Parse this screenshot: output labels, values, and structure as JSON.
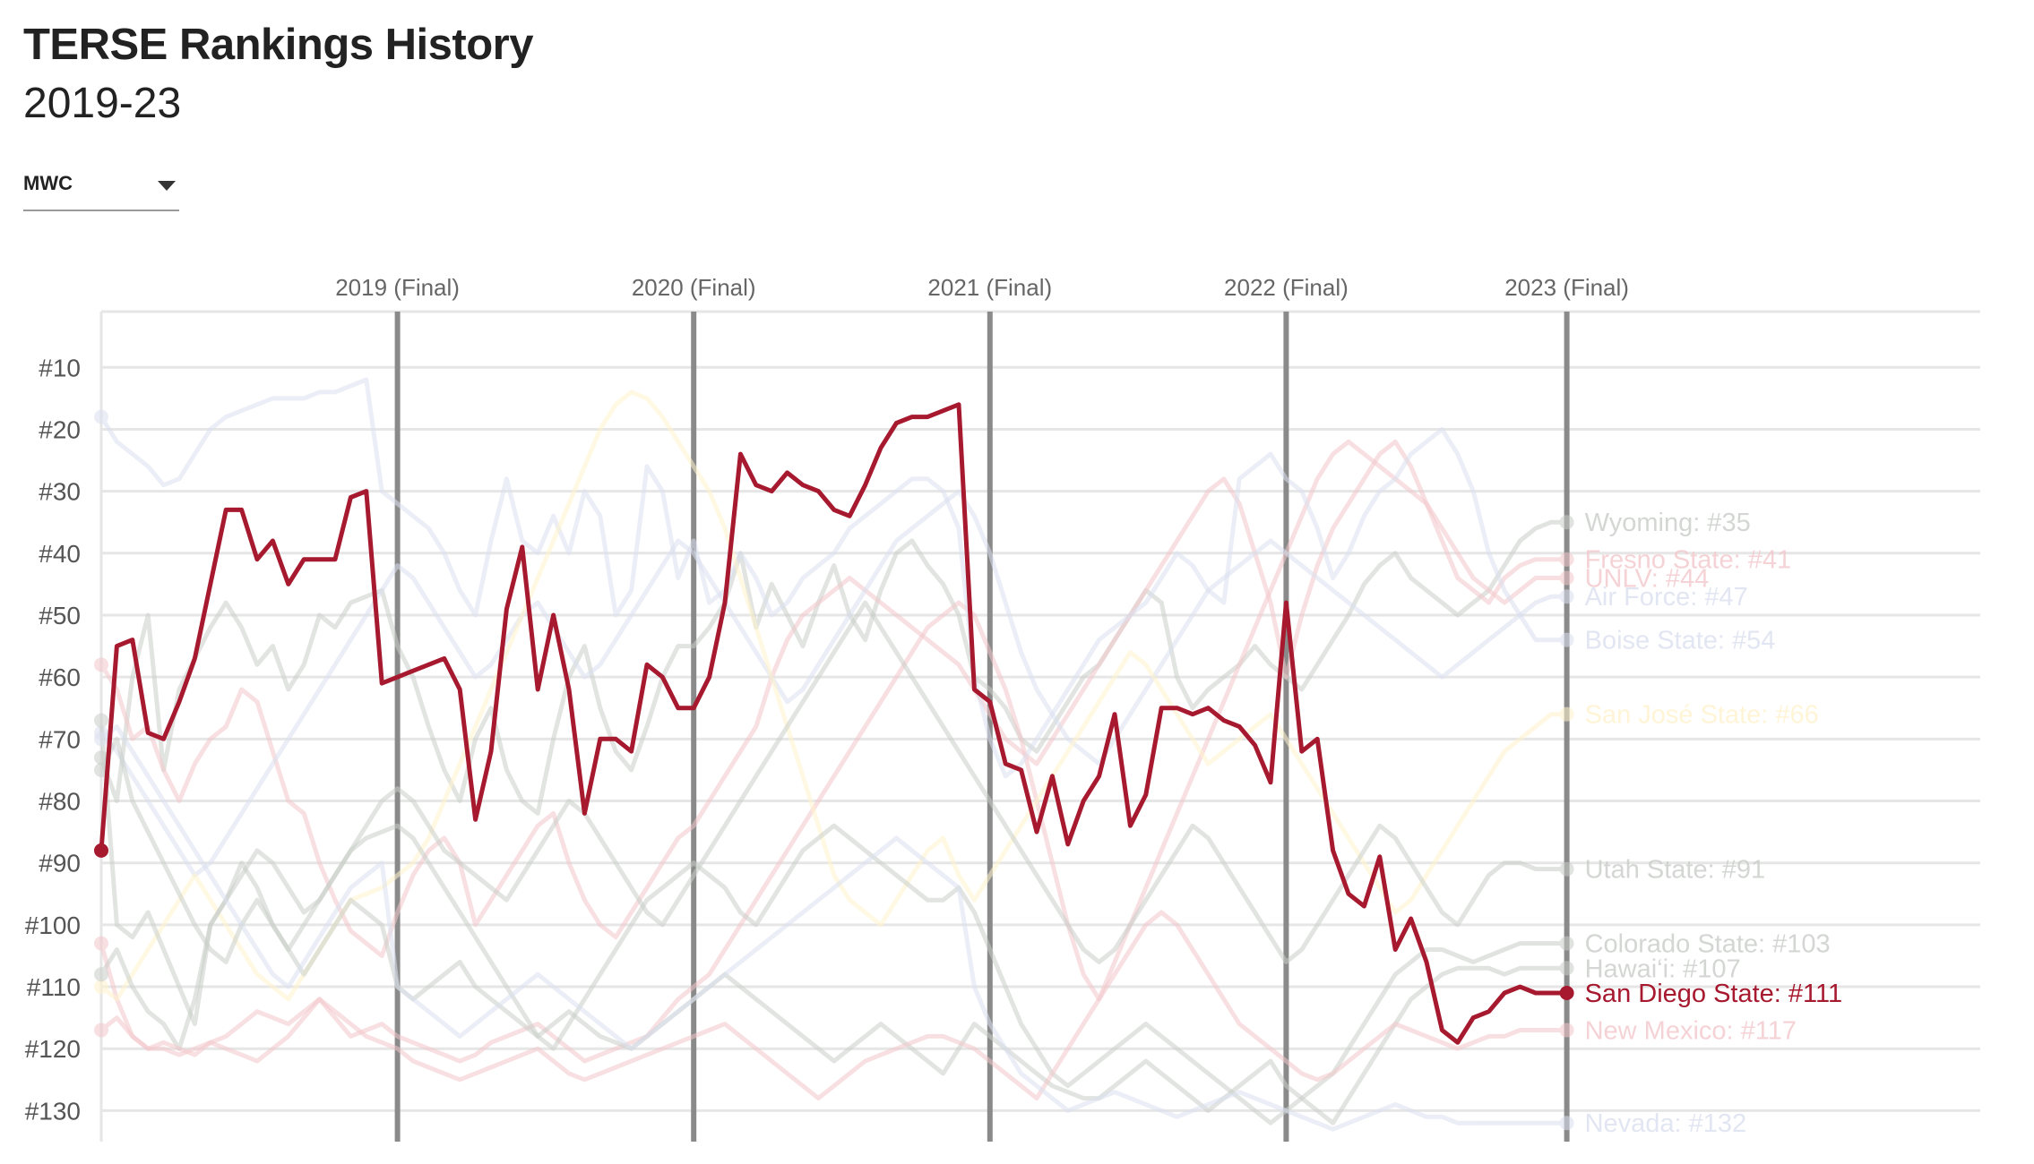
{
  "header": {
    "title": "TERSE Rankings History",
    "subtitle": "2019-23"
  },
  "conference_select": {
    "selected": "MWC"
  },
  "chart_data": {
    "type": "line",
    "y_inverted": true,
    "ylim": [
      1,
      135
    ],
    "y_ticks": [
      "#10",
      "#20",
      "#30",
      "#40",
      "#50",
      "#60",
      "#70",
      "#80",
      "#90",
      "#100",
      "#110",
      "#120",
      "#130"
    ],
    "y_tick_values": [
      10,
      20,
      30,
      40,
      50,
      60,
      70,
      80,
      90,
      100,
      110,
      120,
      130
    ],
    "season_markers": [
      {
        "label": "2019 (Final)",
        "index": 19
      },
      {
        "label": "2020 (Final)",
        "index": 38
      },
      {
        "label": "2021 (Final)",
        "index": 57
      },
      {
        "label": "2022 (Final)",
        "index": 76
      },
      {
        "label": "2023 (Final)",
        "index": 94
      }
    ],
    "highlight_color": "#a6192e",
    "series": [
      {
        "name": "San Diego State",
        "label": "San Diego State: #111",
        "highlight": true,
        "color": "#a6192e",
        "values": [
          88,
          55,
          54,
          69,
          70,
          64,
          57,
          45,
          33,
          33,
          41,
          38,
          45,
          41,
          41,
          41,
          31,
          30,
          61,
          60,
          59,
          58,
          57,
          62,
          83,
          72,
          49,
          39,
          62,
          50,
          62,
          82,
          70,
          70,
          72,
          58,
          60,
          65,
          65,
          60,
          48,
          24,
          29,
          30,
          27,
          29,
          30,
          33,
          34,
          29,
          23,
          19,
          18,
          18,
          17,
          16,
          62,
          64,
          74,
          75,
          85,
          76,
          87,
          80,
          76,
          66,
          84,
          79,
          65,
          65,
          66,
          65,
          67,
          68,
          71,
          77,
          48,
          72,
          70,
          88,
          95,
          97,
          89,
          104,
          99,
          106,
          117,
          119,
          115,
          114,
          111,
          110,
          111,
          111,
          111
        ]
      },
      {
        "name": "Wyoming",
        "label": "Wyoming: #35",
        "color": "#c9cdc9",
        "values": [
          73,
          80,
          60,
          50,
          75,
          62,
          57,
          52,
          48,
          52,
          58,
          55,
          62,
          58,
          50,
          52,
          48,
          47,
          46,
          55,
          60,
          68,
          75,
          80,
          70,
          65,
          75,
          80,
          82,
          70,
          60,
          55,
          65,
          72,
          75,
          68,
          60,
          55,
          55,
          52,
          48,
          40,
          52,
          45,
          50,
          55,
          48,
          42,
          50,
          54,
          46,
          40,
          38,
          42,
          45,
          50,
          60,
          62,
          65,
          70,
          72,
          68,
          64,
          60,
          58,
          54,
          50,
          46,
          48,
          60,
          65,
          62,
          60,
          58,
          55,
          58,
          60,
          62,
          58,
          54,
          50,
          45,
          42,
          40,
          44,
          46,
          48,
          50,
          48,
          46,
          42,
          38,
          36,
          35,
          35
        ]
      },
      {
        "name": "Fresno State",
        "label": "Fresno State: #41",
        "color": "#f3c7cb",
        "values": [
          58,
          62,
          70,
          68,
          75,
          80,
          74,
          70,
          68,
          62,
          64,
          72,
          80,
          82,
          90,
          96,
          101,
          103,
          105,
          98,
          92,
          88,
          86,
          90,
          100,
          96,
          92,
          88,
          84,
          82,
          90,
          96,
          100,
          102,
          98,
          94,
          90,
          86,
          84,
          80,
          76,
          72,
          68,
          60,
          54,
          50,
          48,
          46,
          44,
          46,
          48,
          50,
          52,
          54,
          56,
          58,
          62,
          66,
          70,
          72,
          74,
          70,
          66,
          62,
          58,
          54,
          50,
          46,
          42,
          38,
          34,
          30,
          28,
          32,
          40,
          48,
          60,
          50,
          42,
          36,
          32,
          28,
          24,
          22,
          26,
          32,
          38,
          44,
          46,
          48,
          44,
          42,
          41,
          41,
          41
        ]
      },
      {
        "name": "UNLV",
        "label": "UNLV: #44",
        "color": "#f3c7cb",
        "values": [
          103,
          112,
          118,
          120,
          120,
          121,
          120,
          119,
          120,
          121,
          122,
          120,
          118,
          115,
          112,
          115,
          118,
          117,
          116,
          118,
          119,
          120,
          121,
          122,
          121,
          119,
          118,
          117,
          116,
          118,
          120,
          122,
          121,
          120,
          119,
          118,
          115,
          112,
          110,
          108,
          104,
          100,
          96,
          92,
          88,
          84,
          80,
          76,
          72,
          68,
          64,
          60,
          56,
          52,
          50,
          48,
          50,
          56,
          62,
          70,
          80,
          90,
          100,
          108,
          112,
          106,
          100,
          94,
          88,
          82,
          76,
          70,
          64,
          58,
          52,
          46,
          40,
          34,
          28,
          24,
          22,
          24,
          26,
          28,
          30,
          32,
          36,
          40,
          44,
          46,
          48,
          46,
          44,
          44,
          44
        ]
      },
      {
        "name": "Air Force",
        "label": "Air Force: #47",
        "color": "#dbe0ef",
        "values": [
          69,
          72,
          76,
          80,
          84,
          88,
          92,
          90,
          86,
          82,
          78,
          74,
          70,
          66,
          62,
          58,
          54,
          50,
          46,
          42,
          44,
          48,
          52,
          56,
          60,
          58,
          54,
          50,
          48,
          52,
          56,
          60,
          58,
          54,
          50,
          46,
          42,
          38,
          40,
          44,
          48,
          52,
          56,
          60,
          64,
          62,
          58,
          54,
          50,
          46,
          42,
          38,
          36,
          34,
          32,
          30,
          34,
          40,
          48,
          56,
          62,
          66,
          70,
          72,
          74,
          70,
          66,
          62,
          58,
          54,
          50,
          46,
          44,
          42,
          40,
          38,
          40,
          42,
          44,
          46,
          48,
          50,
          52,
          54,
          56,
          58,
          60,
          58,
          56,
          54,
          52,
          50,
          48,
          47,
          47
        ]
      },
      {
        "name": "Boise State",
        "label": "Boise State: #54",
        "color": "#dbe0ef",
        "values": [
          18,
          22,
          24,
          26,
          29,
          28,
          24,
          20,
          18,
          17,
          16,
          15,
          15,
          15,
          14,
          14,
          13,
          12,
          30,
          32,
          34,
          36,
          40,
          46,
          50,
          38,
          28,
          38,
          40,
          34,
          40,
          30,
          34,
          50,
          46,
          26,
          30,
          44,
          38,
          48,
          46,
          40,
          44,
          50,
          48,
          44,
          42,
          40,
          36,
          34,
          32,
          30,
          28,
          28,
          30,
          36,
          60,
          70,
          76,
          74,
          70,
          66,
          62,
          58,
          54,
          52,
          50,
          48,
          44,
          40,
          42,
          46,
          48,
          28,
          26,
          24,
          28,
          30,
          36,
          44,
          40,
          34,
          30,
          28,
          24,
          22,
          20,
          24,
          30,
          40,
          46,
          50,
          54,
          54,
          54
        ]
      },
      {
        "name": "San José State",
        "label": "San José State: #66",
        "color": "#fff2cc",
        "values": [
          110,
          112,
          108,
          104,
          100,
          96,
          92,
          96,
          100,
          104,
          108,
          110,
          112,
          108,
          104,
          100,
          96,
          95,
          94,
          92,
          90,
          86,
          80,
          74,
          68,
          62,
          56,
          50,
          44,
          38,
          32,
          26,
          20,
          16,
          14,
          15,
          18,
          22,
          26,
          30,
          36,
          44,
          52,
          60,
          68,
          76,
          84,
          92,
          96,
          98,
          100,
          96,
          92,
          88,
          86,
          92,
          96,
          92,
          88,
          84,
          80,
          76,
          72,
          68,
          64,
          60,
          56,
          58,
          62,
          66,
          70,
          74,
          72,
          70,
          68,
          66,
          70,
          74,
          78,
          82,
          86,
          90,
          94,
          98,
          96,
          92,
          88,
          84,
          80,
          76,
          72,
          70,
          68,
          66,
          66
        ]
      },
      {
        "name": "Utah State",
        "label": "Utah State: #91",
        "color": "#c9cdc9",
        "values": [
          67,
          100,
          102,
          98,
          104,
          110,
          116,
          100,
          96,
          92,
          88,
          90,
          94,
          98,
          96,
          92,
          88,
          84,
          80,
          78,
          80,
          84,
          88,
          90,
          92,
          94,
          96,
          92,
          88,
          84,
          80,
          82,
          86,
          90,
          94,
          98,
          100,
          96,
          92,
          88,
          84,
          80,
          76,
          72,
          68,
          64,
          60,
          56,
          52,
          48,
          52,
          56,
          60,
          64,
          68,
          72,
          76,
          80,
          84,
          88,
          92,
          96,
          100,
          104,
          106,
          104,
          100,
          96,
          92,
          88,
          84,
          86,
          90,
          94,
          98,
          102,
          106,
          104,
          100,
          96,
          92,
          88,
          84,
          86,
          90,
          94,
          98,
          100,
          96,
          92,
          90,
          90,
          91,
          91,
          91
        ]
      },
      {
        "name": "Colorado State",
        "label": "Colorado State: #103",
        "color": "#c9cdc9",
        "values": [
          108,
          104,
          110,
          114,
          116,
          120,
          112,
          100,
          96,
          90,
          94,
          100,
          104,
          100,
          96,
          92,
          88,
          86,
          85,
          84,
          86,
          90,
          94,
          98,
          102,
          106,
          110,
          114,
          118,
          120,
          116,
          112,
          108,
          104,
          100,
          96,
          94,
          92,
          90,
          92,
          94,
          98,
          100,
          96,
          92,
          88,
          86,
          84,
          86,
          88,
          90,
          92,
          94,
          96,
          96,
          94,
          98,
          104,
          110,
          116,
          120,
          124,
          126,
          124,
          122,
          120,
          118,
          116,
          118,
          120,
          122,
          124,
          126,
          128,
          130,
          132,
          130,
          128,
          126,
          124,
          120,
          116,
          112,
          108,
          106,
          104,
          104,
          105,
          106,
          105,
          104,
          103,
          103,
          103,
          103
        ]
      },
      {
        "name": "Hawai'i",
        "label": "Hawai‘i: #107",
        "color": "#c9cdc9",
        "values": [
          75,
          70,
          80,
          85,
          90,
          95,
          100,
          104,
          106,
          100,
          96,
          100,
          104,
          108,
          104,
          100,
          96,
          98,
          100,
          110,
          112,
          110,
          108,
          106,
          110,
          112,
          114,
          116,
          118,
          116,
          114,
          116,
          118,
          119,
          120,
          118,
          116,
          114,
          112,
          110,
          108,
          110,
          112,
          114,
          116,
          118,
          120,
          122,
          120,
          118,
          116,
          118,
          120,
          122,
          124,
          120,
          116,
          118,
          120,
          122,
          124,
          126,
          127,
          128,
          128,
          126,
          124,
          122,
          124,
          126,
          128,
          130,
          128,
          126,
          124,
          122,
          126,
          128,
          130,
          132,
          128,
          124,
          120,
          116,
          112,
          110,
          108,
          107,
          107,
          107,
          108,
          107,
          107,
          107,
          107
        ]
      },
      {
        "name": "New Mexico",
        "label": "New Mexico: #117",
        "color": "#f3c7cb",
        "values": [
          117,
          115,
          118,
          120,
          119,
          120,
          121,
          119,
          118,
          116,
          114,
          115,
          116,
          114,
          112,
          114,
          116,
          118,
          119,
          120,
          122,
          123,
          124,
          125,
          124,
          123,
          122,
          121,
          120,
          122,
          124,
          125,
          124,
          123,
          122,
          121,
          120,
          119,
          118,
          117,
          116,
          118,
          120,
          122,
          124,
          126,
          128,
          126,
          124,
          122,
          121,
          120,
          119,
          118,
          118,
          119,
          120,
          122,
          124,
          126,
          128,
          124,
          120,
          116,
          112,
          108,
          104,
          100,
          98,
          100,
          104,
          108,
          112,
          116,
          118,
          120,
          122,
          124,
          125,
          124,
          122,
          120,
          118,
          116,
          117,
          118,
          119,
          120,
          119,
          118,
          118,
          117,
          117,
          117,
          117
        ]
      },
      {
        "name": "Nevada",
        "label": "Nevada: #132",
        "color": "#dbe0ef",
        "values": [
          70,
          68,
          72,
          76,
          80,
          84,
          88,
          92,
          96,
          100,
          104,
          108,
          110,
          106,
          102,
          98,
          94,
          92,
          90,
          110,
          112,
          114,
          116,
          118,
          116,
          114,
          112,
          110,
          108,
          110,
          112,
          114,
          116,
          118,
          120,
          118,
          116,
          114,
          112,
          110,
          108,
          106,
          104,
          102,
          100,
          98,
          96,
          94,
          92,
          90,
          88,
          86,
          88,
          90,
          92,
          94,
          110,
          116,
          120,
          124,
          126,
          128,
          130,
          129,
          128,
          127,
          128,
          129,
          130,
          131,
          130,
          129,
          128,
          127,
          128,
          129,
          130,
          131,
          132,
          133,
          132,
          131,
          130,
          129,
          130,
          131,
          131,
          132,
          132,
          132,
          132,
          132,
          132,
          132,
          132
        ]
      }
    ]
  }
}
